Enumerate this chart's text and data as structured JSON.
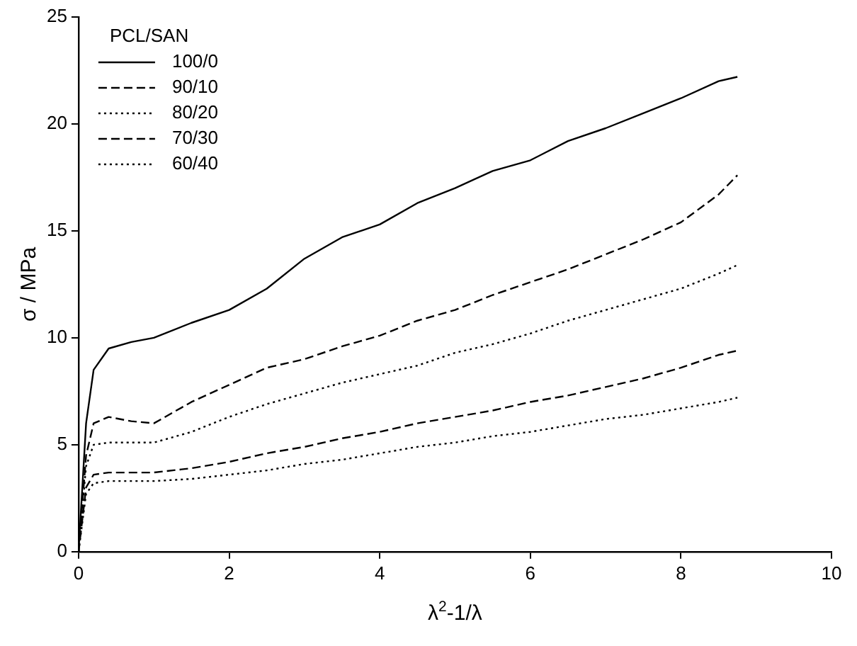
{
  "chart_data": {
    "type": "line",
    "xlabel": "λ$^{2}$-1/λ",
    "ylabel": "σ / MPa",
    "legend_title": "PCL/SAN",
    "legend": "top left",
    "grid": false,
    "marker": "none",
    "x": [
      0,
      0.1,
      0.2,
      0.4,
      0.7,
      1,
      1.5,
      2,
      2.5,
      3,
      3.5,
      4,
      4.5,
      5,
      5.5,
      6,
      6.5,
      7,
      7.5,
      8,
      8.5,
      8.75
    ],
    "xlim": [
      0,
      10
    ],
    "xticks": [
      0,
      2,
      4,
      6,
      8,
      10
    ],
    "ylim": [
      0,
      25
    ],
    "yticks": [
      0,
      5,
      10,
      15,
      20,
      25
    ],
    "series": [
      {
        "name": "100/0",
        "color": "#000000",
        "line_style": "solid",
        "values": [
          0,
          6,
          8.5,
          9.5,
          9.8,
          10,
          10.7,
          11.3,
          12.3,
          13.7,
          14.7,
          15.3,
          16.3,
          17,
          17.8,
          18.3,
          19.2,
          19.8,
          20.5,
          21.2,
          22,
          22.2
        ]
      },
      {
        "name": "90/10",
        "color": "#000000",
        "line_style": "dashed",
        "values": [
          0,
          4.5,
          6,
          6.3,
          6.1,
          6,
          7,
          7.8,
          8.6,
          9,
          9.6,
          10.1,
          10.8,
          11.3,
          12,
          12.6,
          13.2,
          13.9,
          14.6,
          15.4,
          16.7,
          17.6
        ]
      },
      {
        "name": "80/20",
        "color": "#000000",
        "line_style": "dotted",
        "values": [
          0,
          4,
          5,
          5.1,
          5.1,
          5.1,
          5.6,
          6.3,
          6.9,
          7.4,
          7.9,
          8.3,
          8.7,
          9.3,
          9.7,
          10.2,
          10.8,
          11.3,
          11.8,
          12.3,
          13,
          13.4
        ]
      },
      {
        "name": "70/30",
        "color": "#000000",
        "line_style": "dashed",
        "values": [
          0,
          3,
          3.6,
          3.7,
          3.7,
          3.7,
          3.9,
          4.2,
          4.6,
          4.9,
          5.3,
          5.6,
          6,
          6.3,
          6.6,
          7,
          7.3,
          7.7,
          8.1,
          8.6,
          9.2,
          9.4
        ]
      },
      {
        "name": "60/40",
        "color": "#000000",
        "line_style": "dotted",
        "values": [
          0,
          2.7,
          3.2,
          3.3,
          3.3,
          3.3,
          3.4,
          3.6,
          3.8,
          4.1,
          4.3,
          4.6,
          4.9,
          5.1,
          5.4,
          5.6,
          5.9,
          6.2,
          6.4,
          6.7,
          7,
          7.2
        ]
      }
    ]
  }
}
